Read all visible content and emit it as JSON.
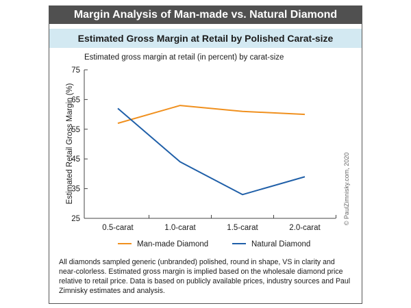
{
  "header": {
    "title": "Margin Analysis of Man-made vs. Natural Diamond",
    "subtitle": "Estimated Gross Margin at Retail by Polished Carat-size"
  },
  "chart_data": {
    "type": "line",
    "title": "Estimated gross margin at retail (in percent) by carat-size",
    "xlabel": "",
    "ylabel": "Estimated Retail Gross Margin (%)",
    "categories": [
      "0.5-carat",
      "1.0-carat",
      "1.5-carat",
      "2.0-carat"
    ],
    "yticks": [
      25,
      35,
      45,
      55,
      65,
      75
    ],
    "ylim": [
      25,
      75
    ],
    "grid": false,
    "legend_position": "bottom",
    "series": [
      {
        "name": "Man-made Diamond",
        "color": "#f0901e",
        "values": [
          57,
          63,
          61,
          60
        ]
      },
      {
        "name": "Natural Diamond",
        "color": "#1f5fa8",
        "values": [
          62,
          44,
          33,
          39
        ]
      }
    ]
  },
  "copyright": "© PaulZimnisky.com, 2020",
  "caption": "All diamonds sampled generic (unbranded) polished, round in shape, VS in clarity and near-colorless. Estimated gross margin is implied based on the wholesale diamond price relative to retail price. Data is based on publicly available prices, industry sources and Paul Zimnisky estimates and analysis."
}
